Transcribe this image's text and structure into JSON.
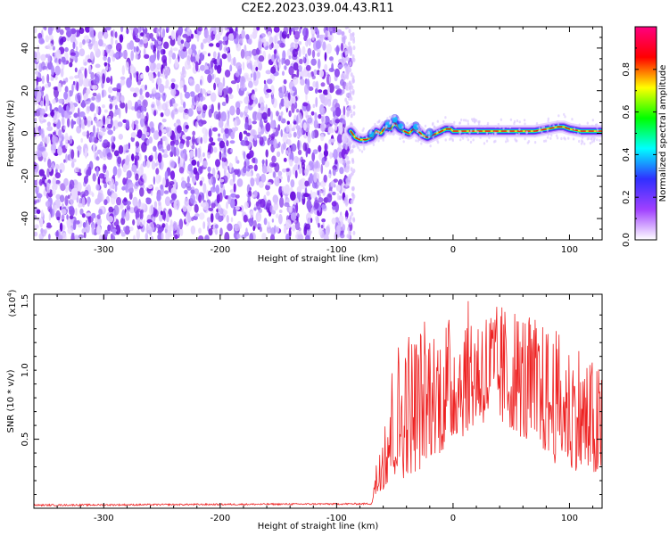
{
  "title": "C2E2.2023.039.04.43.R11",
  "spectrogram": {
    "type": "heatmap",
    "xlabel": "Height of straight line (km)",
    "ylabel": "Frequency (Hz)",
    "xlim": [
      -360,
      128
    ],
    "ylim": [
      -50,
      50
    ],
    "xticks": [
      -300,
      -200,
      -100,
      0,
      100
    ],
    "yticks": [
      -40,
      -20,
      0,
      20,
      40
    ],
    "noise_region_end_x": -88,
    "signal_track": {
      "x": [
        -88,
        -84,
        -80,
        -75,
        -70,
        -66,
        -62,
        -58,
        -54,
        -50,
        -46,
        -42,
        -38,
        -34,
        -30,
        -26,
        -22,
        -18,
        -14,
        -10,
        -6,
        -2,
        0,
        10,
        20,
        30,
        40,
        50,
        60,
        70,
        80,
        90,
        95,
        100,
        110,
        120,
        128
      ],
      "y": [
        1,
        -2,
        -3,
        -3,
        -2,
        1,
        0,
        3,
        2,
        5,
        2,
        1,
        0,
        2,
        1,
        -1,
        -2,
        -1,
        0,
        1,
        2,
        2,
        1,
        1,
        1,
        1,
        1,
        1,
        1,
        1,
        2,
        3,
        3,
        2,
        1,
        1,
        1
      ]
    },
    "colorbar": {
      "label": "Normalized spectral amplitude",
      "range": [
        0,
        1
      ],
      "ticks": [
        "0.0",
        "0.2",
        "0.4",
        "0.6",
        "0.8"
      ],
      "colors": [
        "#ffffff",
        "#a040ff",
        "#3030ff",
        "#00ffff",
        "#00ff00",
        "#ffff00",
        "#ff0000",
        "#ff0080"
      ]
    }
  },
  "snr": {
    "type": "line",
    "xlabel": "Height of straight line (km)",
    "ylabel": "SNR (10 * v/v)",
    "multiplier_label": "(x10",
    "multiplier_exp": "4",
    "multiplier_close": ")",
    "xlim": [
      -360,
      128
    ],
    "ylim": [
      0,
      1.55
    ],
    "xticks": [
      -300,
      -200,
      -100,
      0,
      100
    ],
    "yticks": [
      "0.5",
      "1.0",
      "1.5"
    ],
    "ytick_values": [
      0.5,
      1.0,
      1.5
    ],
    "line_color": "#ee2222",
    "envelope": {
      "x": [
        -360,
        -70,
        -64,
        -60,
        -55,
        -50,
        -45,
        -40,
        -30,
        -20,
        -10,
        0,
        10,
        20,
        30,
        40,
        50,
        60,
        70,
        80,
        90,
        100,
        110,
        120,
        128
      ],
      "baseline": [
        0.02,
        0.03,
        0.1,
        0.15,
        0.18,
        0.2,
        0.22,
        0.25,
        0.3,
        0.35,
        0.4,
        0.5,
        0.55,
        0.6,
        0.6,
        0.6,
        0.55,
        0.5,
        0.45,
        0.4,
        0.35,
        0.3,
        0.25,
        0.2,
        0.2
      ],
      "peak": [
        0.03,
        0.05,
        0.5,
        0.85,
        1.05,
        1.15,
        1.25,
        1.3,
        1.35,
        1.4,
        1.4,
        1.45,
        1.5,
        1.52,
        1.52,
        1.5,
        1.5,
        1.45,
        1.4,
        1.35,
        1.3,
        1.25,
        1.2,
        1.1,
        1.05
      ]
    }
  }
}
